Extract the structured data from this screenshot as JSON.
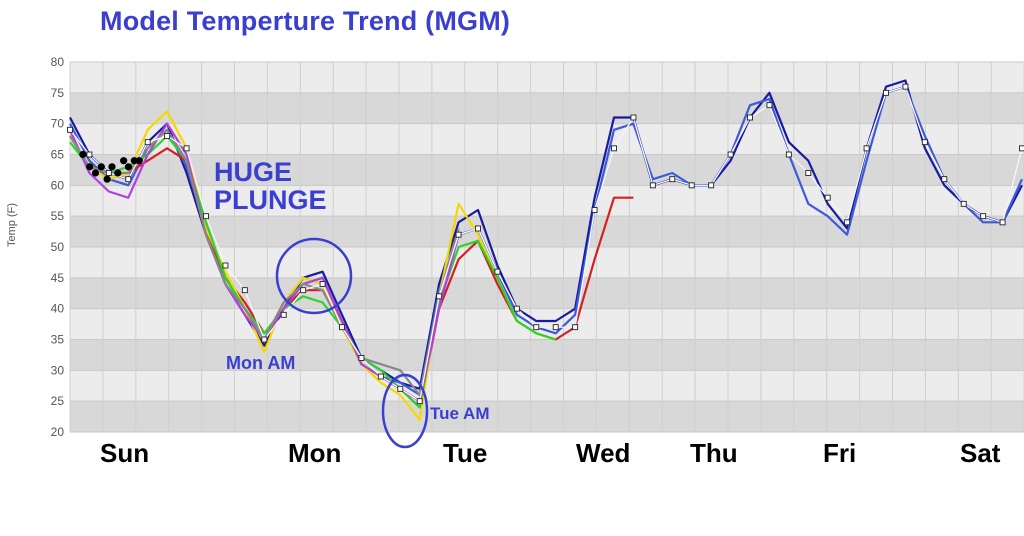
{
  "header": {
    "title": "Model Temperture Trend (MGM)"
  },
  "colors": {
    "title": "#3a3fd0",
    "annotation": "#3a3fd0",
    "plot_bg_light": "#ececec",
    "plot_bg_dark": "#d8d8d8"
  },
  "annotations": {
    "plunge": "HUGE PLUNGE",
    "mon_am": "Mon AM",
    "tue_am": "Tue AM"
  },
  "chart_data": {
    "type": "line",
    "title": "Model Temperture Trend (MGM)",
    "xlabel": "",
    "ylabel": "Temp (F)",
    "ylim": [
      20,
      80
    ],
    "yticks": [
      20,
      25,
      30,
      35,
      40,
      45,
      50,
      55,
      60,
      65,
      70,
      75,
      80
    ],
    "day_labels": [
      "Sun",
      "Mon",
      "Tue",
      "Wed",
      "Thu",
      "Fri",
      "Sat"
    ],
    "grid": true,
    "x_unit": "time step",
    "series": [
      {
        "color": "#1a1aa0",
        "x": [
          0,
          2,
          4,
          6,
          8,
          10,
          12,
          14,
          16,
          18,
          20,
          22,
          24,
          26,
          28,
          30,
          32,
          34,
          36,
          38,
          40,
          42,
          44,
          46,
          48,
          50,
          52,
          54,
          56,
          58,
          60,
          62,
          64,
          66,
          68,
          70,
          72,
          74,
          76,
          78,
          80,
          82,
          84,
          86,
          88,
          90,
          92,
          94,
          96,
          98
        ],
        "y": [
          71,
          65,
          62,
          61,
          67,
          70,
          62,
          52,
          44,
          39,
          34,
          40,
          45,
          46,
          39,
          32,
          30,
          28,
          27,
          44,
          54,
          56,
          47,
          40,
          38,
          38,
          40,
          58,
          71,
          71,
          60,
          61,
          60,
          60,
          64,
          71,
          75,
          67,
          64,
          57,
          53,
          66,
          76,
          77,
          66,
          60,
          57,
          55,
          54,
          60
        ]
      },
      {
        "color": "#3d5bd9",
        "x": [
          0,
          2,
          4,
          6,
          8,
          10,
          12,
          14,
          16,
          18,
          20,
          22,
          24,
          26,
          28,
          30,
          32,
          34,
          36,
          38,
          40,
          42,
          44,
          46,
          48,
          50,
          52,
          54,
          56,
          58,
          60,
          62,
          64,
          66,
          68,
          70,
          72,
          74,
          76,
          78,
          80,
          82,
          84,
          86,
          88,
          90,
          92,
          94,
          96,
          98
        ],
        "y": [
          70,
          64,
          61,
          60,
          66,
          69,
          63,
          53,
          45,
          40,
          35,
          41,
          44,
          45,
          38,
          31,
          29,
          28,
          26,
          43,
          52,
          53,
          46,
          39,
          37,
          36,
          39,
          56,
          69,
          70,
          61,
          62,
          60,
          60,
          65,
          73,
          74,
          65,
          57,
          55,
          52,
          64,
          75,
          76,
          68,
          61,
          57,
          54,
          54,
          61
        ]
      },
      {
        "color": "#d42020",
        "x": [
          0,
          2,
          4,
          6,
          8,
          10,
          12,
          14,
          16,
          18,
          20,
          22,
          24,
          26,
          28,
          30,
          32,
          34,
          36,
          38,
          40,
          42,
          44,
          46,
          48,
          50,
          52,
          54,
          56,
          58
        ],
        "y": [
          68,
          63,
          62,
          62,
          64,
          66,
          64,
          53,
          45,
          41,
          36,
          40,
          43,
          43,
          38,
          31,
          29,
          27,
          24,
          40,
          48,
          51,
          44,
          38,
          36,
          35,
          37,
          48,
          58,
          58
        ]
      },
      {
        "color": "#f5d800",
        "x": [
          0,
          2,
          4,
          6,
          8,
          10,
          12,
          14,
          16,
          18,
          20,
          22,
          24,
          26,
          28,
          30,
          32,
          34,
          36,
          38,
          40,
          42,
          44,
          46,
          48,
          50
        ],
        "y": [
          68,
          63,
          61,
          62,
          69,
          72,
          66,
          53,
          46,
          40,
          33,
          41,
          45,
          44,
          37,
          31,
          28,
          26,
          22,
          42,
          57,
          52,
          45,
          38,
          36,
          35
        ]
      },
      {
        "color": "#2ad42a",
        "x": [
          0,
          2,
          4,
          6,
          8,
          10,
          12,
          14,
          16,
          18,
          20,
          22,
          24,
          26,
          28,
          30,
          32,
          34,
          36,
          38,
          40,
          42,
          44,
          46,
          48,
          50
        ],
        "y": [
          67,
          63,
          62,
          63,
          65,
          68,
          64,
          54,
          45,
          40,
          36,
          40,
          42,
          41,
          37,
          32,
          30,
          27,
          24,
          41,
          50,
          51,
          45,
          38,
          36,
          35
        ]
      },
      {
        "color": "#b040e0",
        "x": [
          0,
          2,
          4,
          6,
          8,
          10,
          12,
          14,
          16,
          18,
          20,
          22,
          24,
          26,
          28,
          30,
          32,
          34,
          36,
          38,
          40
        ],
        "y": [
          69,
          62,
          59,
          58,
          65,
          70,
          65,
          52,
          44,
          39,
          35,
          40,
          44,
          45,
          38,
          31,
          29,
          27,
          25,
          40,
          52
        ]
      },
      {
        "color": "#888888",
        "x": [
          0,
          2,
          4,
          6,
          8,
          10,
          12,
          14,
          16,
          18,
          20,
          22,
          24,
          26,
          28,
          30,
          32,
          34,
          36,
          38,
          40
        ],
        "y": [
          68,
          63,
          62,
          62,
          66,
          69,
          64,
          52,
          44,
          40,
          35,
          41,
          44,
          43,
          37,
          32,
          31,
          30,
          26,
          42,
          53
        ]
      },
      {
        "name": "MGM",
        "color": "#ffffff",
        "x": [
          0,
          2,
          4,
          6,
          8,
          10,
          12,
          14,
          16,
          18,
          20,
          22,
          24,
          26,
          28,
          30,
          32,
          34,
          36,
          38,
          40,
          42,
          44,
          46,
          48,
          50,
          52,
          54,
          56,
          58,
          60,
          62,
          64,
          66,
          68,
          70,
          72,
          74,
          76,
          78,
          80,
          82,
          84,
          86,
          88,
          90,
          92,
          94,
          96,
          98
        ],
        "y": [
          69,
          65,
          62,
          61,
          67,
          68,
          66,
          55,
          47,
          43,
          35,
          39,
          43,
          44,
          37,
          32,
          29,
          27,
          25,
          42,
          52,
          53,
          46,
          40,
          37,
          37,
          37,
          56,
          66,
          71,
          60,
          61,
          60,
          60,
          65,
          71,
          73,
          65,
          62,
          58,
          54,
          66,
          75,
          76,
          67,
          61,
          57,
          55,
          54,
          66
        ]
      }
    ],
    "observed": {
      "color": "#000000",
      "x": [
        0.5,
        1.2,
        1.8,
        2.4,
        3.0,
        3.5,
        4.1,
        4.7,
        5.2,
        5.8,
        6.3
      ],
      "y": [
        65,
        63,
        62,
        63,
        61,
        63,
        62,
        64,
        63,
        64,
        64
      ]
    }
  }
}
